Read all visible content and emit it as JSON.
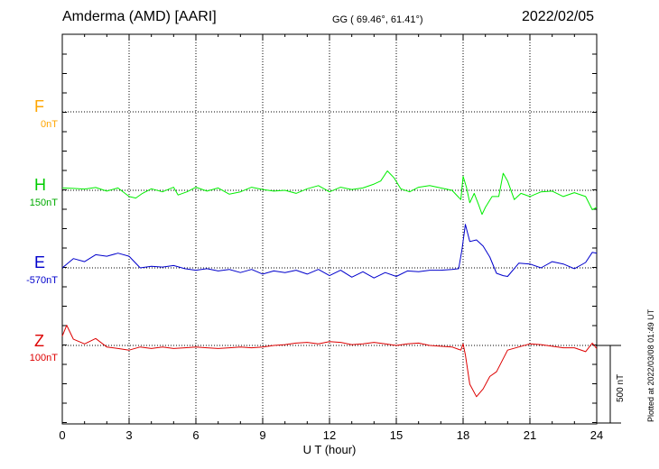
{
  "header": {
    "station": "Amderma (AMD)  [AARI]",
    "coords": "GG ( 69.46°,  61.41°)",
    "date": "2022/02/05"
  },
  "plotted_note": "Plotted at 2022/03/08 01:49 UT",
  "scale_bar_label": "500 nT",
  "chart_data": {
    "type": "line",
    "xlabel": "U T (hour)",
    "xlim": [
      0,
      24
    ],
    "xticks": [
      "0",
      "3",
      "6",
      "9",
      "12",
      "15",
      "18",
      "21",
      "24"
    ],
    "scale_bar_nT": 500,
    "grid": true,
    "series": [
      {
        "name": "F",
        "baseline_label": "0nT",
        "color": "#ffa500",
        "x": [],
        "values": []
      },
      {
        "name": "H",
        "baseline_label": "150nT",
        "color": "#00ee00",
        "x": [
          0,
          0.5,
          1,
          1.5,
          2,
          2.5,
          3,
          3.3,
          3.6,
          4,
          4.5,
          5,
          5.2,
          5.6,
          6,
          6.5,
          7,
          7.5,
          8,
          8.5,
          9,
          9.5,
          10,
          10.5,
          11,
          11.5,
          12,
          12.5,
          13,
          13.5,
          14,
          14.3,
          14.6,
          14.9,
          15.2,
          15.6,
          16,
          16.5,
          17,
          17.5,
          17.9,
          18.0,
          18.15,
          18.3,
          18.5,
          18.7,
          18.85,
          19.0,
          19.3,
          19.6,
          19.8,
          20.0,
          20.3,
          20.6,
          21,
          21.5,
          22,
          22.5,
          23,
          23.5,
          23.8,
          24
        ],
        "values": [
          15,
          12,
          8,
          18,
          -5,
          15,
          -40,
          -50,
          -20,
          10,
          -10,
          20,
          -30,
          -10,
          20,
          -5,
          15,
          -25,
          -10,
          20,
          5,
          -5,
          0,
          -20,
          10,
          30,
          -10,
          20,
          5,
          15,
          40,
          60,
          125,
          80,
          10,
          -10,
          20,
          30,
          15,
          0,
          -60,
          90,
          20,
          -80,
          -20,
          -95,
          -155,
          -110,
          -40,
          -40,
          110,
          60,
          -60,
          -20,
          -40,
          -10,
          -5,
          -40,
          -15,
          -40,
          -125,
          -110
        ]
      },
      {
        "name": "E",
        "baseline_label": "-570nT",
        "color": "#0000cc",
        "x": [
          0,
          0.5,
          1,
          1.5,
          2,
          2.5,
          3,
          3.5,
          4,
          4.5,
          5,
          5.5,
          6,
          6.5,
          7,
          7.5,
          8,
          8.5,
          9,
          9.5,
          10,
          10.5,
          11,
          11.5,
          12,
          12.5,
          13,
          13.5,
          14,
          14.5,
          15,
          15.5,
          16,
          16.5,
          17,
          17.5,
          17.8,
          17.95,
          18.1,
          18.3,
          18.6,
          18.9,
          19.2,
          19.5,
          19.8,
          20.0,
          20.5,
          21,
          21.5,
          22,
          22.5,
          23,
          23.5,
          23.8,
          24
        ],
        "values": [
          0,
          60,
          40,
          85,
          75,
          95,
          75,
          0,
          10,
          5,
          15,
          -5,
          -15,
          -5,
          -20,
          -10,
          -30,
          -10,
          -40,
          -20,
          -30,
          -15,
          -40,
          -10,
          -50,
          -15,
          -60,
          -25,
          -65,
          -30,
          -55,
          -20,
          -25,
          -15,
          -15,
          -10,
          -5,
          120,
          280,
          170,
          180,
          140,
          70,
          -35,
          -50,
          -55,
          30,
          25,
          0,
          40,
          25,
          -5,
          35,
          100,
          95
        ]
      },
      {
        "name": "Z",
        "baseline_label": "100nT",
        "color": "#dd0000",
        "x": [
          0,
          0.2,
          0.5,
          1,
          1.5,
          2,
          2.5,
          3,
          3.5,
          4,
          4.5,
          5,
          5.5,
          6,
          6.5,
          7,
          7.5,
          8,
          8.5,
          9,
          9.5,
          10,
          10.5,
          11,
          11.5,
          12,
          12.5,
          13,
          13.5,
          14,
          14.5,
          15,
          15.5,
          16,
          16.5,
          17,
          17.5,
          17.9,
          18.0,
          18.1,
          18.3,
          18.6,
          18.9,
          19.2,
          19.5,
          20.0,
          20.5,
          21,
          21.5,
          22,
          22.5,
          23,
          23.5,
          23.8,
          24
        ],
        "values": [
          60,
          130,
          40,
          10,
          45,
          -10,
          -20,
          -30,
          -10,
          -20,
          -10,
          -20,
          -15,
          -10,
          -15,
          -20,
          -15,
          -10,
          -15,
          -10,
          0,
          5,
          15,
          20,
          10,
          25,
          20,
          5,
          10,
          20,
          10,
          0,
          10,
          15,
          0,
          -5,
          -10,
          -30,
          10,
          -60,
          -250,
          -330,
          -280,
          -200,
          -170,
          -30,
          -10,
          10,
          5,
          -5,
          -15,
          -15,
          -40,
          15,
          -20
        ]
      }
    ]
  }
}
